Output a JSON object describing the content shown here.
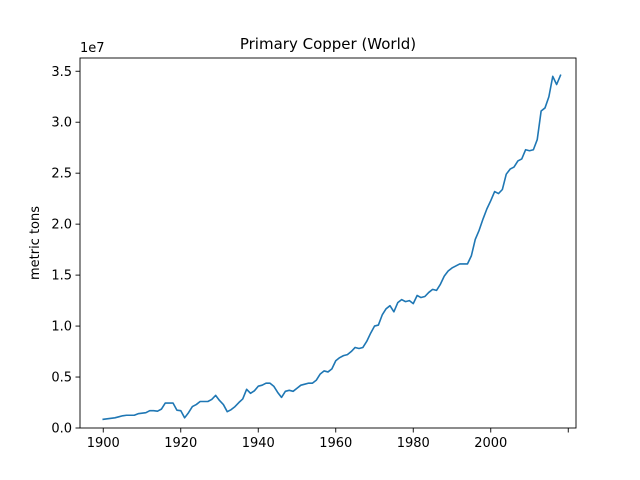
{
  "chart_data": {
    "type": "line",
    "title": "Primary Copper (World)",
    "xlabel": "",
    "ylabel": "metric tons",
    "y_offset_label": "1e7",
    "xlim": [
      1894,
      2022
    ],
    "ylim": [
      0,
      36300000.0
    ],
    "x_ticks": [
      1900,
      1920,
      1940,
      1960,
      1980,
      2000,
      2020
    ],
    "x_tick_labels": [
      "1900",
      "1920",
      "1940",
      "1960",
      "1980",
      "2000",
      ""
    ],
    "y_ticks": [
      0,
      5000000,
      10000000,
      15000000,
      20000000,
      25000000,
      30000000,
      35000000
    ],
    "y_tick_labels": [
      "0.0",
      "0.5",
      "1.0",
      "1.5",
      "2.0",
      "2.5",
      "3.0",
      "3.5"
    ],
    "grid": false,
    "line_color": "#1f77b4",
    "series": [
      {
        "x": [
          1900,
          1901,
          1902,
          1903,
          1904,
          1905,
          1906,
          1907,
          1908,
          1909,
          1910,
          1911,
          1912,
          1913,
          1914,
          1915,
          1916,
          1917,
          1918,
          1919,
          1920,
          1921,
          1922,
          1923,
          1924,
          1925,
          1926,
          1927,
          1928,
          1929,
          1930,
          1931,
          1932,
          1933,
          1934,
          1935,
          1936,
          1937,
          1938,
          1939,
          1940,
          1941,
          1942,
          1943,
          1944,
          1945,
          1946,
          1947,
          1948,
          1949,
          1950,
          1951,
          1952,
          1953,
          1954,
          1955,
          1956,
          1957,
          1958,
          1959,
          1960,
          1961,
          1962,
          1963,
          1964,
          1965,
          1966,
          1967,
          1968,
          1969,
          1970,
          1971,
          1972,
          1973,
          1974,
          1975,
          1976,
          1977,
          1978,
          1979,
          1980,
          1981,
          1982,
          1983,
          1984,
          1985,
          1986,
          1987,
          1988,
          1989,
          1990,
          1991,
          1992,
          1993,
          1994,
          1995,
          1996,
          1997,
          1998,
          1999,
          2000,
          2001,
          2002,
          2003,
          2004,
          2005,
          2006,
          2007,
          2008,
          2009,
          2010,
          2011,
          2012,
          2013,
          2014,
          2015,
          2016,
          2017,
          2018
        ],
        "values": [
          850000,
          900000,
          950000,
          1000000,
          1100000,
          1200000,
          1250000,
          1250000,
          1250000,
          1400000,
          1450000,
          1500000,
          1700000,
          1700000,
          1650000,
          1850000,
          2450000,
          2450000,
          2450000,
          1750000,
          1700000,
          1000000,
          1500000,
          2100000,
          2300000,
          2600000,
          2600000,
          2600000,
          2800000,
          3200000,
          2700000,
          2300000,
          1600000,
          1800000,
          2100000,
          2500000,
          2850000,
          3800000,
          3400000,
          3650000,
          4100000,
          4200000,
          4400000,
          4400000,
          4100000,
          3500000,
          3000000,
          3600000,
          3700000,
          3600000,
          3900000,
          4200000,
          4300000,
          4400000,
          4400000,
          4700000,
          5300000,
          5600000,
          5500000,
          5800000,
          6600000,
          6900000,
          7100000,
          7200000,
          7500000,
          7900000,
          7800000,
          7900000,
          8500000,
          9300000,
          10000000,
          10100000,
          11100000,
          11700000,
          12000000,
          11400000,
          12300000,
          12600000,
          12400000,
          12500000,
          12200000,
          13000000,
          12800000,
          12900000,
          13300000,
          13600000,
          13500000,
          14100000,
          14900000,
          15400000,
          15700000,
          15900000,
          16100000,
          16100000,
          16100000,
          16900000,
          18500000,
          19400000,
          20500000,
          21500000,
          22300000,
          23200000,
          23000000,
          23400000,
          24900000,
          25400000,
          25600000,
          26200000,
          26400000,
          27300000,
          27200000,
          27300000,
          28300000,
          31100000,
          31400000,
          32500000,
          34500000,
          33700000,
          34600000
        ]
      }
    ]
  }
}
